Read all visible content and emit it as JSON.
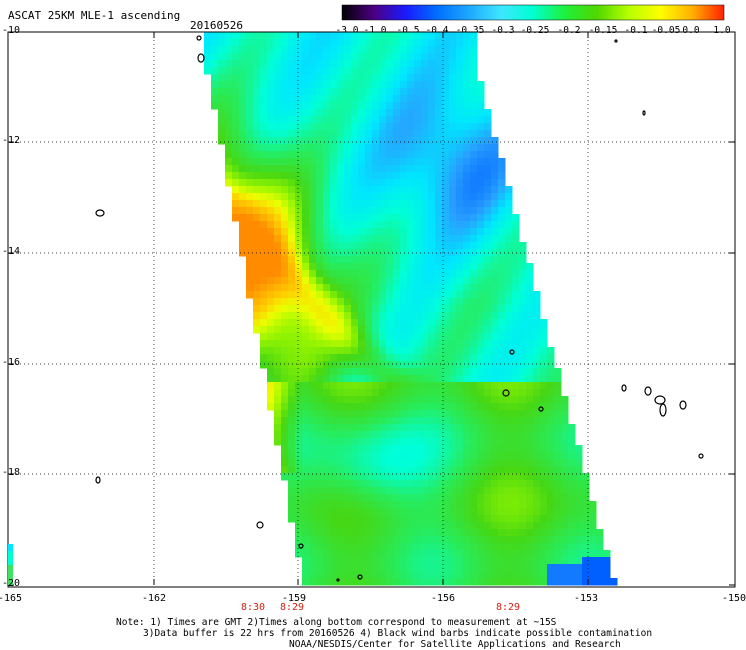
{
  "title": "ASCAT 25KM MLE-1 ascending",
  "date": "20160526",
  "colorbar": {
    "labels": [
      "-3.0",
      "-1.0",
      "-0.5",
      "-0.4",
      "-0.35",
      "-0.3",
      "-0.25",
      "-0.2",
      "-0.15",
      "-0.1",
      "-0.05",
      "0.0",
      "1.0"
    ],
    "colors": [
      "#000000",
      "#4b0082",
      "#1a1aff",
      "#0070ff",
      "#1fa8ff",
      "#3ee6ff",
      "#00ffd0",
      "#1ef03c",
      "#4fd700",
      "#b6ff00",
      "#ffff00",
      "#ffb000",
      "#ff2000"
    ]
  },
  "axes": {
    "lat_labels": [
      "-10",
      "-12",
      "-14",
      "-16",
      "-18",
      "-20"
    ],
    "lon_labels": [
      "-165",
      "-162",
      "-159",
      "-156",
      "-153",
      "-150"
    ]
  },
  "time_labels": [
    "8:30",
    "8:29",
    "8:29"
  ],
  "notes": [
    "Note: 1) Times are GMT 2)Times along bottom correspond to measurement at ~15S",
    "3)Data buffer is 22 hrs from 20160526 4) Black wind barbs indicate possible contamination",
    "NOAA/NESDIS/Center for Satellite Applications and Research"
  ]
}
